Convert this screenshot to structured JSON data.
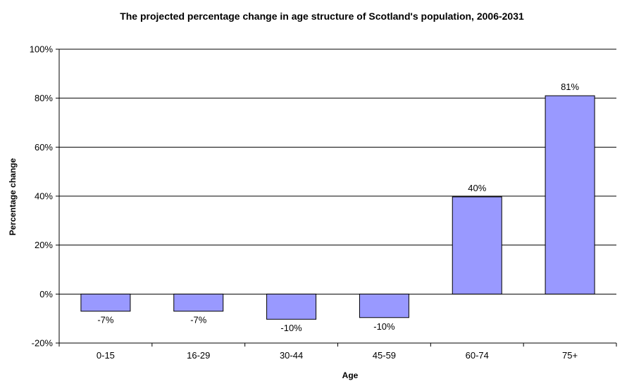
{
  "chart_data": {
    "type": "bar",
    "title": "The projected percentage change in age structure of Scotland's population, 2006-2031",
    "xlabel": "Age",
    "ylabel": "Percentage change",
    "categories": [
      "0-15",
      "16-29",
      "30-44",
      "45-59",
      "60-74",
      "75+"
    ],
    "values": [
      -7,
      -7,
      -10,
      -10,
      40,
      81
    ],
    "bar_heights_percent": [
      -7,
      -7,
      -10.3,
      -9.6,
      39.7,
      81
    ],
    "data_labels": [
      "-7%",
      "-7%",
      "-10%",
      "-10%",
      "40%",
      "81%"
    ],
    "ylim": [
      -20,
      100
    ],
    "yticks": [
      -20,
      0,
      20,
      40,
      60,
      80,
      100
    ],
    "ytick_labels": [
      "-20%",
      "0%",
      "20%",
      "40%",
      "60%",
      "80%",
      "100%"
    ],
    "grid": true,
    "legend": "none",
    "colors": {
      "bar_fill": "#9999ff",
      "bar_stroke": "#000000",
      "gridline": "#000000",
      "axis": "#000000"
    }
  }
}
